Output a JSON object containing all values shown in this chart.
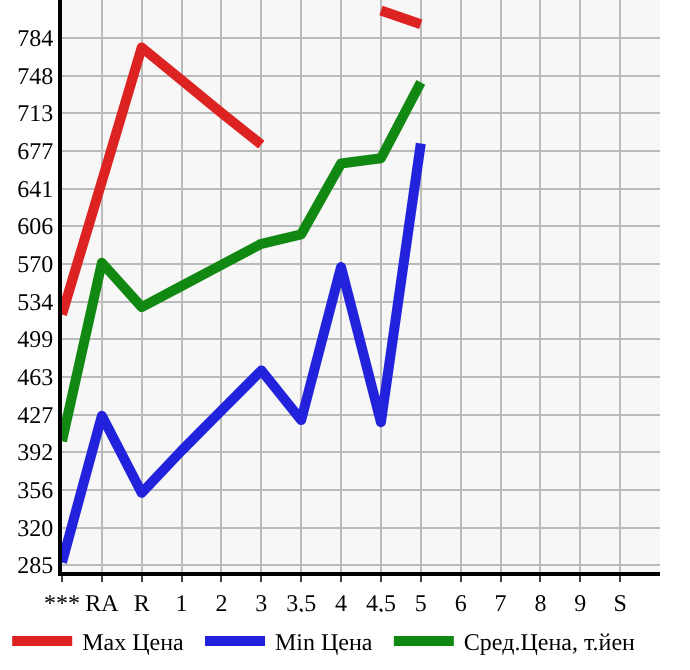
{
  "chart_data": {
    "type": "line",
    "categories": [
      "***",
      "RA",
      "R",
      "1",
      "2",
      "3",
      "3,5",
      "4",
      "4,5",
      "5",
      "6",
      "7",
      "8",
      "9",
      "S"
    ],
    "series": [
      {
        "name": "Max Цена",
        "color": "#dd2222",
        "values": [
          522,
          648,
          775,
          744,
          713,
          683,
          null,
          null,
          810,
          797,
          null,
          null,
          null,
          null,
          null
        ]
      },
      {
        "name": "Min Цена",
        "color": "#2222dd",
        "values": [
          287,
          426,
          353,
          393,
          431,
          469,
          422,
          567,
          420,
          684,
          null,
          null,
          null,
          null,
          null
        ]
      },
      {
        "name": "Сред.Цена, т.йен",
        "color": "#118811",
        "values": [
          402,
          571,
          529,
          549,
          569,
          589,
          598,
          665,
          670,
          742,
          null,
          null,
          null,
          null,
          null
        ]
      }
    ],
    "ylim": [
      278,
      820
    ],
    "yticks": [
      285,
      320,
      356,
      392,
      427,
      463,
      499,
      534,
      570,
      606,
      641,
      677,
      713,
      748,
      784
    ],
    "grid": true,
    "legend": "bottom",
    "marker": "none",
    "line_style": "solid"
  }
}
